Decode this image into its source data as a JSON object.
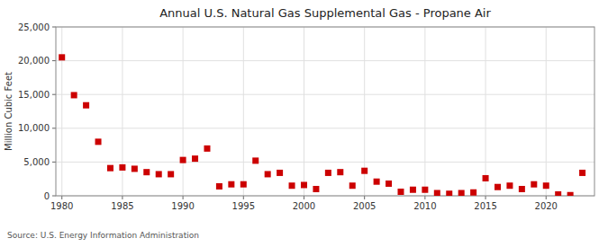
{
  "chart_data": {
    "type": "scatter",
    "title": "Annual U.S. Natural Gas Supplemental Gas - Propane Air",
    "ylabel": "Million Cubic Feet",
    "source": "Source: U.S. Energy Information Administration",
    "color": "#cc0000",
    "marker": "square",
    "grid": true,
    "xlim": [
      1979.5,
      2024.0
    ],
    "ylim": [
      0,
      25000
    ],
    "xticks": [
      1980,
      1985,
      1990,
      1995,
      2000,
      2005,
      2010,
      2015,
      2020
    ],
    "yticks": [
      0,
      {
        "value": 5000,
        "label": "5,000"
      },
      {
        "value": 10000,
        "label": "10,000"
      },
      {
        "value": 15000,
        "label": "15,000"
      },
      {
        "value": 20000,
        "label": "20,000"
      },
      {
        "value": 25000,
        "label": "25,000"
      }
    ],
    "x": [
      1980,
      1981,
      1982,
      1983,
      1984,
      1985,
      1986,
      1987,
      1988,
      1989,
      1990,
      1991,
      1992,
      1993,
      1994,
      1995,
      1996,
      1997,
      1998,
      1999,
      2000,
      2001,
      2002,
      2003,
      2004,
      2005,
      2006,
      2007,
      2008,
      2009,
      2010,
      2011,
      2012,
      2013,
      2014,
      2015,
      2016,
      2017,
      2018,
      2019,
      2020,
      2021,
      2022,
      2023
    ],
    "values": [
      20500,
      14900,
      13400,
      8000,
      4100,
      4200,
      4000,
      3500,
      3200,
      3200,
      5300,
      5500,
      7000,
      1400,
      1700,
      1700,
      5200,
      3200,
      3400,
      1500,
      1600,
      1000,
      3400,
      3500,
      1500,
      3700,
      2100,
      1800,
      600,
      900,
      900,
      400,
      300,
      400,
      500,
      2600,
      1300,
      1500,
      1000,
      1700,
      1500,
      200,
      100,
      3400
    ]
  }
}
